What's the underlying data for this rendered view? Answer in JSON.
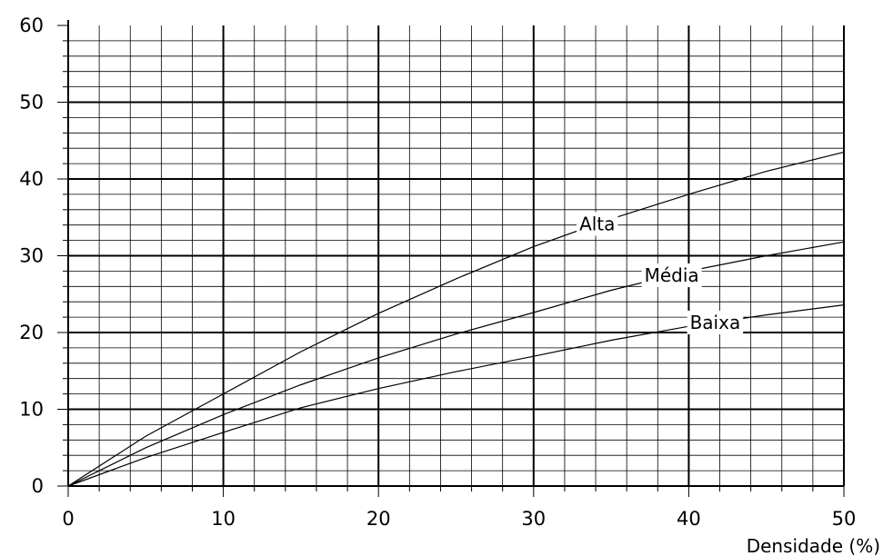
{
  "chart_data": {
    "type": "line",
    "title": "",
    "xlabel": "Densidade (%)",
    "ylabel": "",
    "xlim": [
      0,
      50
    ],
    "ylim": [
      0,
      60
    ],
    "x_ticks": [
      "0",
      "10",
      "20",
      "30",
      "40",
      "50"
    ],
    "y_ticks": [
      "0",
      "10",
      "20",
      "30",
      "40",
      "50",
      "60"
    ],
    "grid": true,
    "legend": "inline labels on curves",
    "series": [
      {
        "name": "Alta",
        "x": [
          0,
          5,
          10,
          15,
          20,
          25,
          30,
          35,
          40,
          45,
          50
        ],
        "y": [
          0,
          6.5,
          12.0,
          17.5,
          22.5,
          27.0,
          31.2,
          34.8,
          38.0,
          41.0,
          43.5
        ]
      },
      {
        "name": "Média",
        "x": [
          0,
          5,
          10,
          15,
          20,
          25,
          30,
          35,
          40,
          45,
          50
        ],
        "y": [
          0,
          5.0,
          9.3,
          13.2,
          16.7,
          19.8,
          22.6,
          25.5,
          28.0,
          30.0,
          31.8
        ]
      },
      {
        "name": "Baixa",
        "x": [
          0,
          5,
          10,
          15,
          20,
          25,
          30,
          35,
          40,
          45,
          50
        ],
        "y": [
          0,
          3.7,
          7.0,
          10.2,
          12.7,
          14.9,
          16.9,
          19.0,
          20.8,
          22.3,
          23.6
        ]
      }
    ]
  }
}
